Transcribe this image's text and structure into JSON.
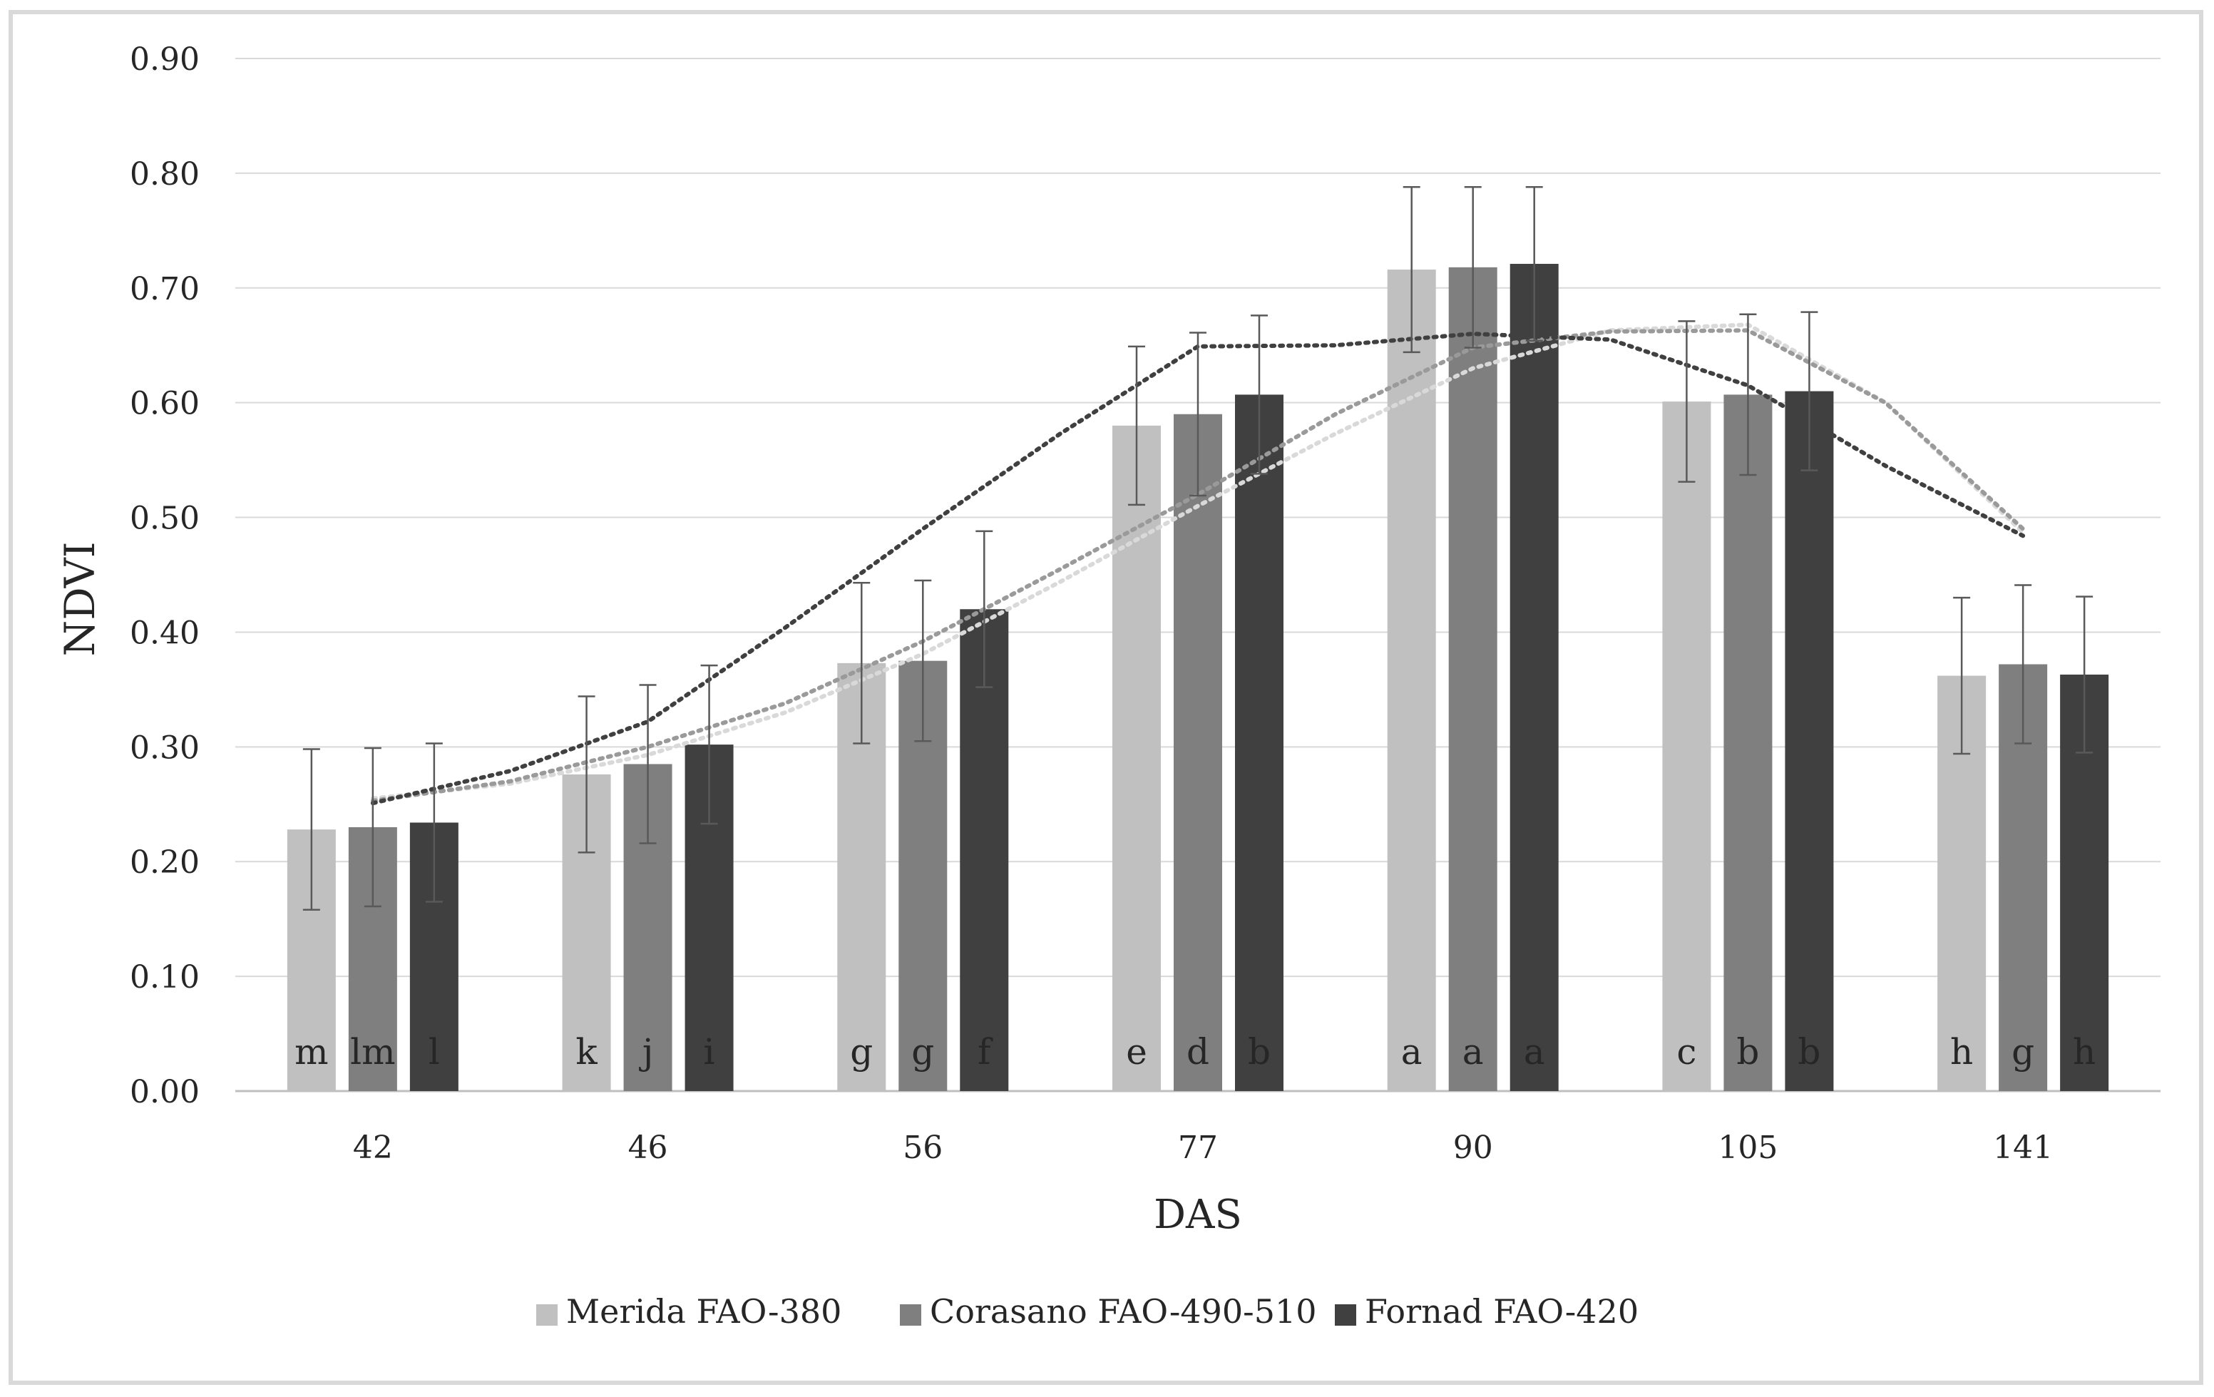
{
  "chart_data": {
    "type": "bar",
    "title": "",
    "xlabel": "DAS",
    "ylabel": "NDVI",
    "categories": [
      "42",
      "46",
      "56",
      "77",
      "90",
      "105",
      "141"
    ],
    "ylim": [
      0,
      0.9
    ],
    "yticks": [
      "0.00",
      "0.10",
      "0.20",
      "0.30",
      "0.40",
      "0.50",
      "0.60",
      "0.70",
      "0.80",
      "0.90"
    ],
    "grid": true,
    "legend_position": "bottom",
    "series": [
      {
        "name": "Merida FAO-380",
        "color": "#c0c0c0",
        "values": [
          0.228,
          0.276,
          0.373,
          0.58,
          0.716,
          0.601,
          0.362
        ],
        "error": [
          0.07,
          0.068,
          0.07,
          0.069,
          0.072,
          0.07,
          0.068
        ],
        "letters": [
          "m",
          "k",
          "g",
          "e",
          "a",
          "c",
          "h"
        ]
      },
      {
        "name": "Corasano FAO-490-510",
        "color": "#7f7f7f",
        "values": [
          0.23,
          0.285,
          0.375,
          0.59,
          0.718,
          0.607,
          0.372
        ],
        "error": [
          0.069,
          0.069,
          0.07,
          0.071,
          0.07,
          0.07,
          0.069
        ],
        "letters": [
          "lm",
          "j",
          "g",
          "d",
          "a",
          "b",
          "g"
        ]
      },
      {
        "name": "Fornad FAO-420",
        "color": "#404040",
        "values": [
          0.234,
          0.302,
          0.42,
          0.607,
          0.721,
          0.61,
          0.363
        ],
        "error": [
          0.069,
          0.069,
          0.068,
          0.069,
          0.067,
          0.069,
          0.068
        ],
        "letters": [
          "l",
          "i",
          "f",
          "b",
          "a",
          "b",
          "h"
        ]
      }
    ],
    "trendlines": [
      {
        "series": "Merida FAO-380",
        "style": "dotted",
        "color": "#d9d9d9",
        "x": [
          1,
          1.5,
          2,
          2.5,
          3,
          3.5,
          4,
          4.5,
          5,
          5.5,
          6,
          6.5,
          7
        ],
        "y": [
          0.255,
          0.268,
          0.293,
          0.33,
          0.381,
          0.444,
          0.51,
          0.573,
          0.63,
          0.663,
          0.668,
          0.6,
          0.487
        ]
      },
      {
        "series": "Corasano FAO-490-510",
        "style": "dotted",
        "color": "#9a9a9a",
        "x": [
          1,
          1.5,
          2,
          2.5,
          3,
          3.5,
          4,
          4.5,
          5,
          5.5,
          6,
          6.5,
          7
        ],
        "y": [
          0.253,
          0.27,
          0.3,
          0.338,
          0.392,
          0.455,
          0.52,
          0.59,
          0.648,
          0.662,
          0.663,
          0.6,
          0.49
        ]
      },
      {
        "series": "Fornad FAO-420",
        "style": "dotted",
        "color": "#404040",
        "x": [
          1,
          1.5,
          2,
          2.5,
          3,
          3.5,
          4,
          4.5,
          5,
          5.5,
          6,
          6.5,
          7
        ],
        "y": [
          0.251,
          0.279,
          0.322,
          0.404,
          0.49,
          0.573,
          0.649,
          0.65,
          0.66,
          0.655,
          0.615,
          0.545,
          0.484
        ]
      }
    ]
  }
}
